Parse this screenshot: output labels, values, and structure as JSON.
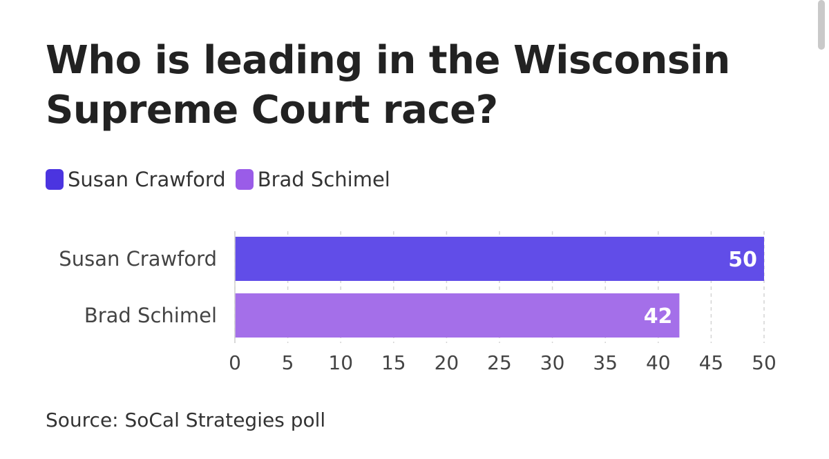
{
  "title": "Who is leading in the Wisconsin Supreme Court race?",
  "legend": [
    {
      "label": "Susan Crawford",
      "color": "#4b34e0"
    },
    {
      "label": "Brad Schimel",
      "color": "#9a5ce8"
    }
  ],
  "source": "Source: SoCal Strategies poll",
  "chart_data": {
    "type": "bar",
    "orientation": "horizontal",
    "categories": [
      "Susan Crawford",
      "Brad Schimel"
    ],
    "values": [
      50,
      42
    ],
    "colors": [
      "#614de8",
      "#a46fe9"
    ],
    "data_labels": [
      "50",
      "42"
    ],
    "xlim": [
      0,
      50
    ],
    "xticks": [
      0,
      5,
      10,
      15,
      20,
      25,
      30,
      35,
      40,
      45,
      50
    ],
    "grid": "vertical dashed",
    "legend_placement": "top-left"
  }
}
